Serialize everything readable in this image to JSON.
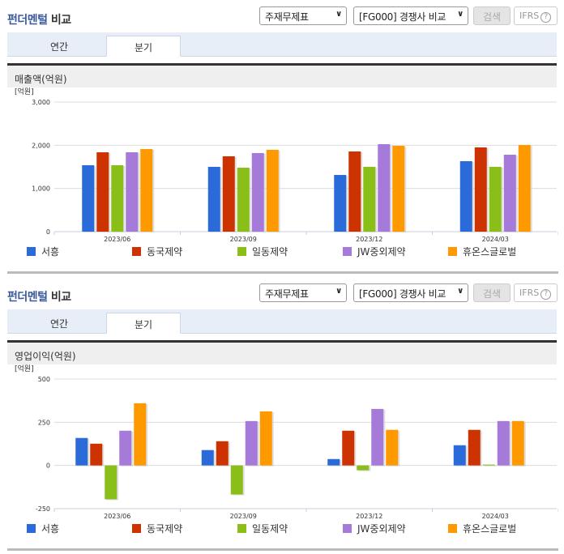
{
  "sections": [
    {
      "title_accent": "펀더멘털",
      "title_rest": " 비교",
      "select1": "주재무제표",
      "select2": "[FG000] 경쟁사 비교",
      "search_button": "검색",
      "ifrs_button": "IFRS",
      "tabs": [
        {
          "label": "연간",
          "active": false
        },
        {
          "label": "분기",
          "active": true
        }
      ],
      "metric_label": "매출액(억원)"
    },
    {
      "title_accent": "펀더멘털",
      "title_rest": " 비교",
      "select1": "주재무제표",
      "select2": "[FG000] 경쟁사 비교",
      "search_button": "검색",
      "ifrs_button": "IFRS",
      "tabs": [
        {
          "label": "연간",
          "active": false
        },
        {
          "label": "분기",
          "active": true
        }
      ],
      "metric_label": "영업이익(억원)"
    }
  ],
  "colors": {
    "서흥": "#2a6ad9",
    "동국제약": "#cc3300",
    "일동제약": "#8abf1a",
    "JW중외제약": "#a67ad8",
    "휴온스글로벌": "#ff9900"
  },
  "chart_data": [
    {
      "type": "bar",
      "title": "매출액(억원)",
      "ylabel": "[억원]",
      "xlabel": "",
      "categories": [
        "2023/06",
        "2023/09",
        "2023/12",
        "2024/03"
      ],
      "yticks": [
        "0",
        "1,000",
        "2,000",
        "3,000"
      ],
      "ylim": [
        0,
        3000
      ],
      "grid": true,
      "legend_position": "bottom",
      "series": [
        {
          "name": "서흥",
          "color": "#2a6ad9",
          "values": [
            1537,
            1500,
            1312,
            1631
          ]
        },
        {
          "name": "동국제약",
          "color": "#cc3300",
          "values": [
            1837,
            1744,
            1856,
            1950
          ]
        },
        {
          "name": "일동제약",
          "color": "#8abf1a",
          "values": [
            1537,
            1481,
            1500,
            1500
          ]
        },
        {
          "name": "JW중외제약",
          "color": "#a67ad8",
          "values": [
            1837,
            1819,
            2025,
            1781
          ]
        },
        {
          "name": "휴온스글로벌",
          "color": "#ff9900",
          "values": [
            1912,
            1894,
            1987,
            2006
          ]
        }
      ]
    },
    {
      "type": "bar",
      "title": "영업이익(억원)",
      "ylabel": "[억원]",
      "xlabel": "",
      "categories": [
        "2023/06",
        "2023/09",
        "2023/12",
        "2024/03"
      ],
      "yticks": [
        "-250",
        "0",
        "250",
        "500"
      ],
      "ylim": [
        -250,
        500
      ],
      "grid": true,
      "legend_position": "bottom",
      "series": [
        {
          "name": "서흥",
          "color": "#2a6ad9",
          "values": [
            159,
            89,
            37,
            117
          ]
        },
        {
          "name": "동국제약",
          "color": "#cc3300",
          "values": [
            126,
            140,
            201,
            206
          ]
        },
        {
          "name": "일동제약",
          "color": "#8abf1a",
          "values": [
            -196,
            -168,
            -28,
            5
          ]
        },
        {
          "name": "JW중외제약",
          "color": "#a67ad8",
          "values": [
            201,
            257,
            327,
            257
          ]
        },
        {
          "name": "휴온스글로벌",
          "color": "#ff9900",
          "values": [
            360,
            313,
            206,
            257
          ]
        }
      ]
    }
  ]
}
